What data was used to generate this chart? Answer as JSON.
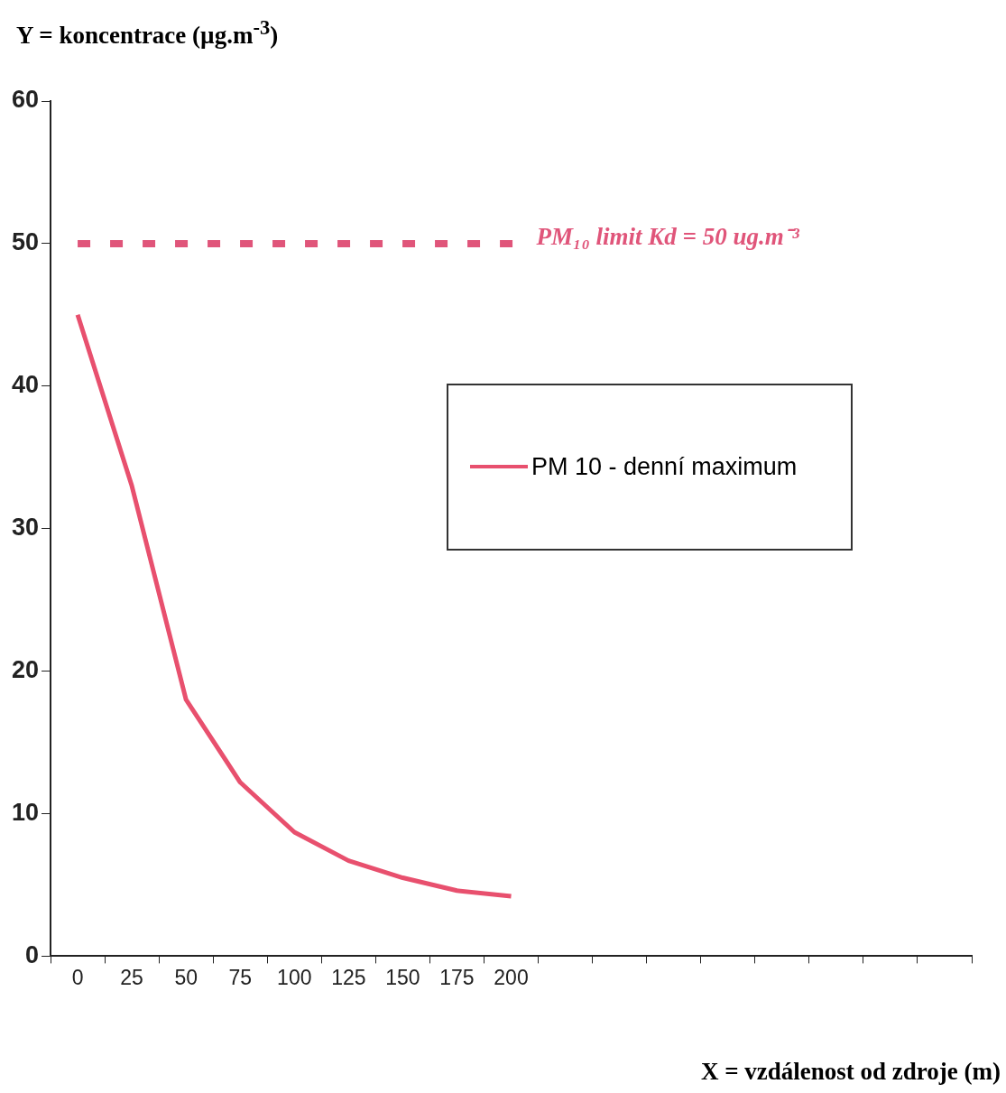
{
  "chart_data": {
    "type": "line",
    "ylabel": "Y = koncentrace (µg.m$^{-3}$)",
    "xlabel": "X = vzdálenost od zdroje (m)",
    "categories": [
      "0",
      "25",
      "50",
      "75",
      "100",
      "125",
      "150",
      "175",
      "200",
      null,
      null,
      null,
      null,
      null,
      null,
      null,
      null
    ],
    "series": [
      {
        "name": "PM 10 - denní maximum",
        "color": "#e8506e",
        "values": [
          45,
          33,
          18,
          12.2,
          8.7,
          6.7,
          5.5,
          4.6,
          4.2,
          null,
          null,
          null,
          null,
          null,
          null,
          null,
          null
        ]
      }
    ],
    "ylim": [
      0,
      60
    ],
    "yticks": [
      0,
      10,
      20,
      30,
      40,
      50,
      60
    ],
    "grid": false,
    "legend": "right",
    "marker": "none",
    "line_style": "solid",
    "ref_lines": [
      {
        "axis": "y",
        "value": 50,
        "label": "PM₁₀ limit Kd = 50 ug.m⁻³",
        "color": "#e0557a",
        "line_style": "dashed"
      }
    ]
  }
}
